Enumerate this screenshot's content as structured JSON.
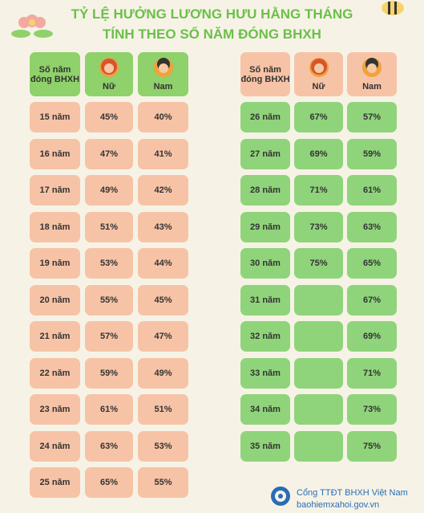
{
  "header": {
    "title_line1": "TỶ LỆ HƯỞNG LƯƠNG HƯU HẰNG THÁNG",
    "title_line2": "TÍNH THEO SỐ NĂM ĐÓNG BHXH"
  },
  "tables": [
    {
      "columns": [
        "Số năm đóng BHXH",
        "Nữ",
        "Nam"
      ],
      "rows": [
        [
          "15 năm",
          "45%",
          "40%"
        ],
        [
          "16 năm",
          "47%",
          "41%"
        ],
        [
          "17 năm",
          "49%",
          "42%"
        ],
        [
          "18 năm",
          "51%",
          "43%"
        ],
        [
          "19 năm",
          "53%",
          "44%"
        ],
        [
          "20 năm",
          "55%",
          "45%"
        ],
        [
          "21 năm",
          "57%",
          "47%"
        ],
        [
          "22 năm",
          "59%",
          "49%"
        ],
        [
          "23 năm",
          "61%",
          "51%"
        ],
        [
          "24 năm",
          "63%",
          "53%"
        ],
        [
          "25 năm",
          "65%",
          "55%"
        ]
      ]
    },
    {
      "columns": [
        "Số năm đóng BHXH",
        "Nữ",
        "Nam"
      ],
      "rows": [
        [
          "26 năm",
          "67%",
          "57%"
        ],
        [
          "27 năm",
          "69%",
          "59%"
        ],
        [
          "28 năm",
          "71%",
          "61%"
        ],
        [
          "29 năm",
          "73%",
          "63%"
        ],
        [
          "30 năm",
          "75%",
          "65%"
        ],
        [
          "31 năm",
          null,
          "67%"
        ],
        [
          "32 năm",
          null,
          "69%"
        ],
        [
          "33 năm",
          null,
          "71%"
        ],
        [
          "34 năm",
          null,
          "73%"
        ],
        [
          "35 năm",
          null,
          "75%"
        ]
      ]
    }
  ],
  "footer": {
    "org": "Cổng TTĐT BHXH Việt Nam",
    "site": "baohiemxahoi.gov.vn"
  }
}
